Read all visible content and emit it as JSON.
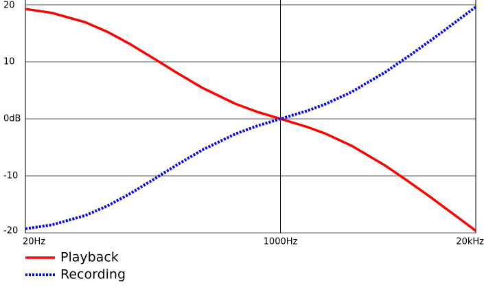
{
  "chart_data": {
    "type": "line",
    "x": [
      20,
      30,
      50,
      70,
      100,
      150,
      200,
      300,
      500,
      700,
      1000,
      1500,
      2000,
      3000,
      5000,
      7000,
      10000,
      15000,
      20000
    ],
    "series": [
      {
        "name": "Playback",
        "color": "#ff0000",
        "style": "solid",
        "values": [
          19.27,
          18.59,
          16.95,
          15.29,
          13.09,
          10.27,
          8.22,
          5.48,
          2.65,
          1.23,
          0,
          -1.4,
          -2.61,
          -4.76,
          -8.21,
          -10.84,
          -13.73,
          -17.17,
          -19.62
        ]
      },
      {
        "name": "Recording",
        "color": "#0000ff",
        "style": "dotted",
        "values": [
          -19.27,
          -18.59,
          -16.95,
          -15.29,
          -13.09,
          -10.27,
          -8.22,
          -5.48,
          -2.65,
          -1.23,
          0,
          1.4,
          2.61,
          4.76,
          8.21,
          10.84,
          13.73,
          17.17,
          19.62
        ]
      }
    ],
    "xscale": "log",
    "xlim": [
      20,
      20000
    ],
    "xticks": [
      {
        "value": 20,
        "label": "20Hz"
      },
      {
        "value": 1000,
        "label": "1000Hz"
      },
      {
        "value": 20000,
        "label": "20kHz"
      }
    ],
    "ylim": [
      -20,
      20
    ],
    "yticks": [
      20,
      10,
      {
        "value": 0,
        "label": "0dB"
      },
      -10,
      -20
    ],
    "grid": true,
    "legend": "bottom-left"
  }
}
